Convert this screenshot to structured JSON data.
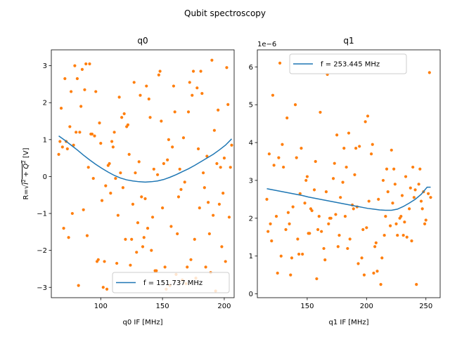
{
  "figure": {
    "suptitle": "Qubit spectroscopy",
    "colors": {
      "fit": "#1f77b4",
      "data": "#ff7f0e"
    }
  },
  "chart_data": [
    {
      "type": "scatter",
      "title": "q0",
      "xlabel": "q0 IF [MHz]",
      "ylabel": "R=√(I²+Q²) [V]",
      "ylabel_parts": {
        "prefix": "R=",
        "radicand_1": "I",
        "plus": " + ",
        "radicand_2": "Q",
        "exp": "2",
        "suffix": " [V]"
      },
      "xlim": [
        60,
        208
      ],
      "ylim": [
        -3.28,
        3.43
      ],
      "xticks": [
        100,
        150,
        200
      ],
      "yticks": [
        -3,
        -2,
        -1,
        0,
        1,
        2,
        3
      ],
      "xtick_labels": [
        "100",
        "150",
        "200"
      ],
      "ytick_labels": [
        "−3",
        "−2",
        "−1",
        "0",
        "1",
        "2",
        "3"
      ],
      "legend": {
        "location": "lower right",
        "label": "f = 151.737 MHz"
      },
      "series": [
        {
          "kind": "points",
          "x": [
            66,
            68,
            70,
            72,
            74,
            76,
            78,
            80,
            82,
            84,
            86,
            88,
            90,
            92,
            94,
            96,
            98,
            100,
            102,
            104,
            106,
            108,
            110,
            112,
            114,
            116,
            118,
            120,
            122,
            124,
            126,
            128,
            130,
            132,
            134,
            136,
            138,
            140,
            142,
            144,
            146,
            148,
            150,
            152,
            154,
            156,
            158,
            160,
            162,
            164,
            166,
            168,
            170,
            172,
            174,
            176,
            178,
            180,
            182,
            184,
            186,
            188,
            190,
            192,
            194,
            196,
            198,
            200,
            202,
            204,
            206,
            67,
            71,
            75,
            79,
            83,
            87,
            91,
            95,
            99,
            103,
            107,
            111,
            115,
            119,
            123,
            127,
            131,
            135,
            139,
            143,
            147,
            151,
            155,
            159,
            163,
            167,
            171,
            175,
            179,
            183,
            187,
            191,
            195,
            199,
            203,
            69,
            77,
            85,
            93,
            101,
            109,
            117,
            125,
            133,
            141,
            149,
            157,
            165,
            173,
            181,
            189,
            197,
            205,
            73,
            81,
            89,
            97,
            105,
            113,
            121,
            129,
            137,
            145,
            153,
            161,
            169,
            177,
            185,
            193,
            201
          ],
          "y": [
            0.6,
            1.85,
            -1.4,
            0.95,
            -1.65,
            2.3,
            0.85,
            1.2,
            -2.95,
            1.9,
            -0.9,
            3.05,
            0.25,
            1.15,
            -0.05,
            2.3,
            -2.25,
            0.9,
            -3.0,
            -0.25,
            0.3,
            -0.45,
            0.8,
            -0.05,
            -1.05,
            0.1,
            -0.3,
            -1.7,
            1.4,
            -2.4,
            -0.75,
            0.1,
            -1.25,
            2.2,
            -1.9,
            -0.6,
            -1.4,
            1.6,
            -1.1,
            -2.55,
            0.05,
            2.85,
            -0.85,
            -2.45,
            0.45,
            -2.95,
            0.8,
            1.75,
            -1.55,
            0.2,
            -2.8,
            -0.15,
            -2.45,
            2.55,
            2.2,
            -1.7,
            2.4,
            -0.85,
            2.25,
            -0.3,
            0.55,
            -1.55,
            3.15,
            1.25,
            0.35,
            -0.75,
            -1.9,
            0.5,
            2.95,
            -1.1,
            0.85,
            0.95,
            2.65,
            1.35,
            3.0,
            1.2,
            2.35,
            3.05,
            1.1,
            1.45,
            -2.3,
            0.35,
            1.2,
            2.15,
            1.7,
            0.6,
            2.55,
            0.4,
            -1.65,
            2.1,
            0.2,
            2.75,
            0.35,
            1.0,
            2.45,
            -0.55,
            1.05,
            1.75,
            2.85,
            0.75,
            0.1,
            -0.7,
            -1.05,
            1.8,
            -0.45,
            1.95,
            0.8,
            -1.0,
            2.9,
            1.15,
            -0.65,
            0.95,
            1.6,
            -1.7,
            -0.55,
            -2.0,
            1.5,
            -1.35,
            -0.35,
            -2.25,
            2.85,
            -2.6,
            0.25,
            0.25,
            0.75,
            2.65,
            -1.6,
            -2.3,
            -3.05,
            -2.35,
            1.35,
            -2.05,
            2.45,
            -2.55,
            -3.05,
            -2.65,
            -2.9,
            -2.75,
            -2.45,
            -3.1,
            -2.3
          ],
          "color": "#ff7f0e"
        },
        {
          "kind": "line",
          "x": [
            66,
            71,
            76,
            81,
            86,
            91,
            96,
            101,
            106,
            111,
            116,
            121,
            126,
            131,
            136,
            141,
            146,
            151,
            156,
            161,
            166,
            171,
            176,
            181,
            186,
            191,
            196,
            201,
            206
          ],
          "y": [
            1.1,
            0.98,
            0.85,
            0.72,
            0.58,
            0.45,
            0.33,
            0.22,
            0.12,
            0.03,
            -0.04,
            -0.09,
            -0.12,
            -0.14,
            -0.15,
            -0.14,
            -0.12,
            -0.08,
            -0.02,
            0.05,
            0.13,
            0.21,
            0.3,
            0.4,
            0.5,
            0.6,
            0.72,
            0.85,
            1.02
          ],
          "color": "#1f77b4",
          "name": "f = 151.737 MHz"
        }
      ]
    },
    {
      "type": "scatter",
      "title": "q1",
      "xlabel": "q1 IF [MHz]",
      "ylabel": "",
      "offset_label": "1e−6",
      "xlim": [
        108,
        262
      ],
      "ylim": [
        -0.1,
        6.45
      ],
      "xticks": [
        150,
        200,
        250
      ],
      "yticks": [
        0,
        1,
        2,
        3,
        4,
        5,
        6
      ],
      "xtick_labels": [
        "150",
        "200",
        "250"
      ],
      "ytick_labels": [
        "0",
        "1",
        "2",
        "3",
        "4",
        "5",
        "6"
      ],
      "legend": {
        "location": "upper left",
        "label": "f = 253.445 MHz"
      },
      "series": [
        {
          "kind": "points",
          "x": [
            116,
            118,
            120,
            122,
            124,
            126,
            128,
            130,
            132,
            134,
            136,
            138,
            140,
            142,
            144,
            146,
            148,
            150,
            152,
            154,
            156,
            158,
            160,
            162,
            164,
            166,
            168,
            170,
            172,
            174,
            176,
            178,
            180,
            182,
            184,
            186,
            188,
            190,
            192,
            194,
            196,
            198,
            200,
            202,
            204,
            206,
            208,
            210,
            212,
            214,
            216,
            218,
            220,
            222,
            224,
            226,
            228,
            230,
            232,
            234,
            236,
            238,
            240,
            242,
            244,
            246,
            248,
            250,
            252,
            254,
            117,
            121,
            125,
            129,
            133,
            137,
            141,
            145,
            149,
            153,
            157,
            161,
            165,
            169,
            173,
            177,
            181,
            185,
            189,
            193,
            197,
            201,
            205,
            209,
            213,
            217,
            221,
            225,
            229,
            233,
            237,
            241,
            245,
            249,
            253,
            119,
            127,
            135,
            143,
            151,
            159,
            167,
            175,
            183,
            191,
            199,
            207,
            215,
            223,
            231,
            239,
            247
          ],
          "y": [
            2.5,
            3.7,
            1.4,
            3.4,
            2.05,
            3.6,
            1.0,
            3.35,
            1.7,
            2.15,
            0.5,
            2.3,
            5.0,
            1.45,
            2.65,
            1.05,
            2.4,
            3.1,
            1.6,
            2.2,
            2.75,
            0.4,
            2.05,
            1.65,
            1.2,
            2.7,
            1.85,
            2.0,
            3.05,
            2.1,
            1.25,
            2.55,
            2.95,
            2.05,
            1.2,
            1.45,
            2.35,
            3.15,
            2.3,
            3.9,
            0.95,
            0.5,
            1.75,
            2.45,
            3.7,
            0.55,
            1.35,
            2.5,
            0.25,
            3.0,
            2.05,
            2.7,
            1.8,
            2.4,
            2.9,
            1.55,
            2.0,
            2.6,
            1.9,
            1.5,
            2.25,
            1.4,
            2.55,
            0.25,
            2.9,
            2.45,
            2.7,
            1.95,
            2.65,
            2.55,
            1.65,
            5.25,
            0.55,
            3.95,
            4.65,
            0.95,
            3.6,
            3.85,
            3.0,
            2.25,
            3.5,
            4.8,
            0.9,
            2.0,
            3.45,
            1.55,
            3.85,
            4.25,
            2.25,
            0.8,
            1.7,
            4.7,
            3.95,
            0.6,
            0.95,
            3.3,
            3.8,
            1.85,
            2.05,
            3.1,
            2.8,
            2.75,
            3.3,
            1.85,
            5.85,
            1.85,
            6.1,
            1.85,
            1.05,
            1.6,
            1.7,
            5.8,
            4.2,
            3.35,
            3.85,
            4.55,
            1.25,
            1.55,
            3.3,
            1.55,
            3.35,
            2.25
          ],
          "color": "#ff7f0e"
        },
        {
          "kind": "line",
          "x": [
            116,
            121,
            126,
            131,
            136,
            141,
            146,
            151,
            156,
            161,
            166,
            171,
            176,
            181,
            186,
            191,
            196,
            201,
            206,
            211,
            216,
            221,
            226,
            231,
            236,
            241,
            246,
            251,
            254
          ],
          "y": [
            2.78,
            2.75,
            2.72,
            2.69,
            2.66,
            2.63,
            2.6,
            2.56,
            2.53,
            2.5,
            2.47,
            2.44,
            2.41,
            2.38,
            2.35,
            2.32,
            2.29,
            2.26,
            2.24,
            2.22,
            2.21,
            2.21,
            2.24,
            2.31,
            2.4,
            2.5,
            2.63,
            2.82,
            2.82
          ],
          "color": "#1f77b4",
          "name": "f = 253.445 MHz"
        }
      ]
    }
  ]
}
